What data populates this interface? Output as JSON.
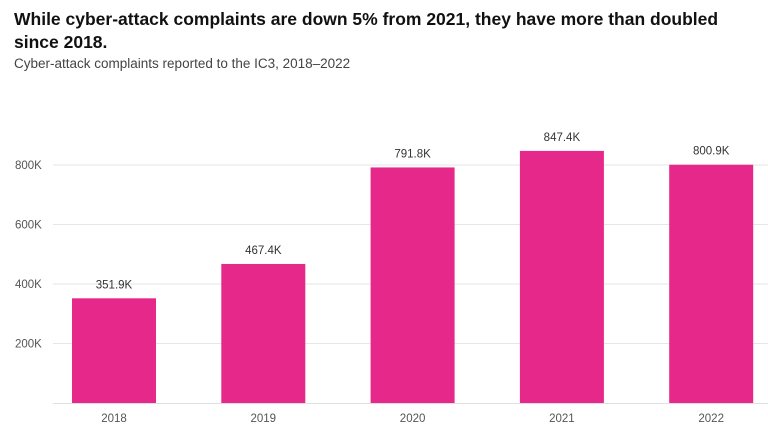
{
  "chart_data": {
    "type": "bar",
    "title": "While cyber-attack complaints are down 5% from 2021, they have more than doubled since 2018.",
    "subtitle": "Cyber-attack complaints reported to the IC3, 2018–2022",
    "xlabel": "",
    "ylabel": "",
    "categories": [
      "2018",
      "2019",
      "2020",
      "2021",
      "2022"
    ],
    "values": [
      351900,
      467400,
      791800,
      847400,
      800900
    ],
    "data_labels": [
      "351.9K",
      "467.4K",
      "791.8K",
      "847.4K",
      "800.9K"
    ],
    "ylim": [
      0,
      1000000
    ],
    "yticks": [
      200000,
      400000,
      600000,
      800000
    ],
    "ytick_labels": [
      "200K",
      "400K",
      "600K",
      "800K"
    ],
    "grid": true,
    "bar_color": "#e5288a"
  }
}
